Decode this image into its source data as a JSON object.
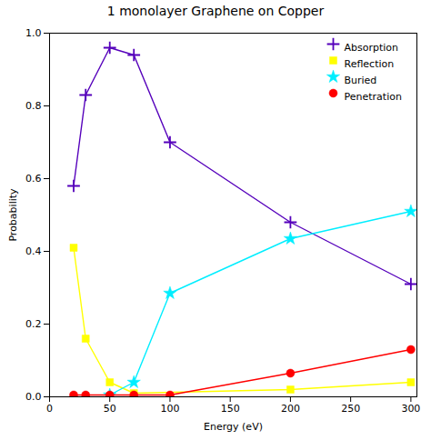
{
  "chart_data": {
    "type": "line",
    "title": "1 monolayer Graphene on Copper",
    "xlabel": "Energy (eV)",
    "ylabel": "Probability",
    "xlim": [
      0,
      305
    ],
    "ylim": [
      0,
      1.0
    ],
    "xticks": [
      0,
      50,
      100,
      150,
      200,
      250,
      300
    ],
    "yticks": [
      {
        "value": 0,
        "label": "0.0"
      },
      0.2,
      0.4,
      0.6,
      0.8,
      {
        "value": 1,
        "label": "1.0"
      }
    ],
    "legend": "upper right",
    "series": [
      {
        "name": "Absorption",
        "color": "#5500bb",
        "marker": "plus",
        "x": [
          20,
          30,
          50,
          70,
          100,
          200,
          300
        ],
        "values": [
          0.58,
          0.83,
          0.96,
          0.94,
          0.7,
          0.48,
          0.31
        ]
      },
      {
        "name": "Reflection",
        "color": "#ffff00",
        "marker": "square",
        "x": [
          20,
          30,
          50,
          70,
          200,
          300
        ],
        "values": [
          0.41,
          0.16,
          0.04,
          0.01,
          0.02,
          0.04
        ]
      },
      {
        "name": "Buried",
        "color": "#00eeff",
        "marker": "star",
        "x": [
          50,
          70,
          100,
          200,
          300
        ],
        "values": [
          0.005,
          0.04,
          0.285,
          0.435,
          0.51
        ]
      },
      {
        "name": "Penetration",
        "color": "#ff0000",
        "marker": "circle",
        "x": [
          20,
          30,
          50,
          70,
          100,
          200,
          300
        ],
        "values": [
          0.005,
          0.005,
          0.005,
          0.005,
          0.005,
          0.065,
          0.13
        ]
      }
    ]
  }
}
